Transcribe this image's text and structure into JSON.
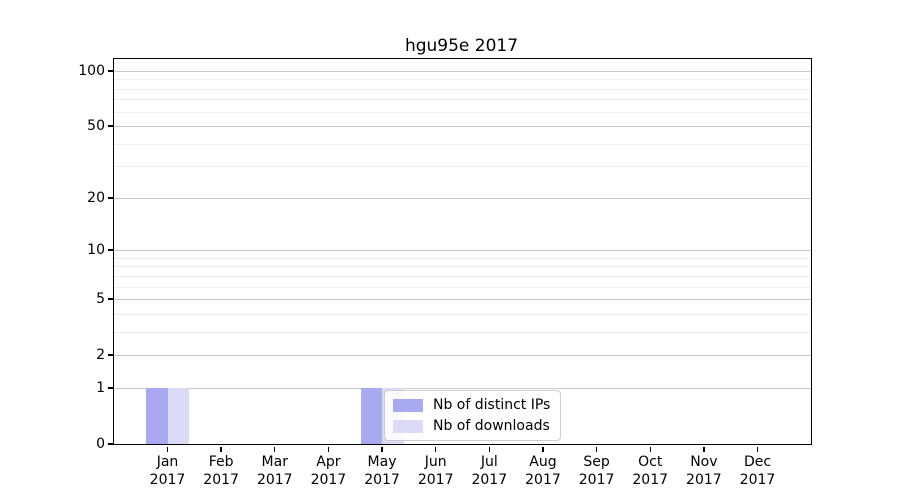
{
  "figure": {
    "title": "hgu95e 2017"
  },
  "legend": {
    "items": [
      {
        "label": "Nb of distinct IPs",
        "color": "#a9a9ef"
      },
      {
        "label": "Nb of downloads",
        "color": "#dbdbf8"
      }
    ]
  },
  "chart_data": {
    "type": "bar",
    "title": "hgu95e 2017",
    "xlabel": "",
    "ylabel": "",
    "categories": [
      "Jan 2017",
      "Feb 2017",
      "Mar 2017",
      "Apr 2017",
      "May 2017",
      "Jun 2017",
      "Jul 2017",
      "Aug 2017",
      "Sep 2017",
      "Oct 2017",
      "Nov 2017",
      "Dec 2017"
    ],
    "series": [
      {
        "name": "Nb of distinct IPs",
        "color": "#a9a9ef",
        "values": [
          1,
          0,
          0,
          0,
          1,
          0,
          0,
          0,
          0,
          0,
          0,
          0
        ]
      },
      {
        "name": "Nb of downloads",
        "color": "#dbdbf8",
        "values": [
          1,
          0,
          0,
          0,
          1,
          0,
          0,
          0,
          0,
          0,
          0,
          0
        ]
      }
    ],
    "yscale": "log1p",
    "ylim": [
      0,
      116
    ],
    "major_yticks": [
      0,
      1,
      2,
      5,
      10,
      20,
      50,
      100
    ],
    "minor_yticks": [
      3,
      4,
      6,
      7,
      8,
      9,
      30,
      40,
      60,
      70,
      80,
      90
    ],
    "grid": "horizontal, major darker than minor",
    "legend_position": "inside lower-center"
  },
  "colors": {
    "major_grid": "#c9c9c9",
    "minor_grid": "#ededed",
    "spine": "#000000",
    "background": "#ffffff"
  }
}
